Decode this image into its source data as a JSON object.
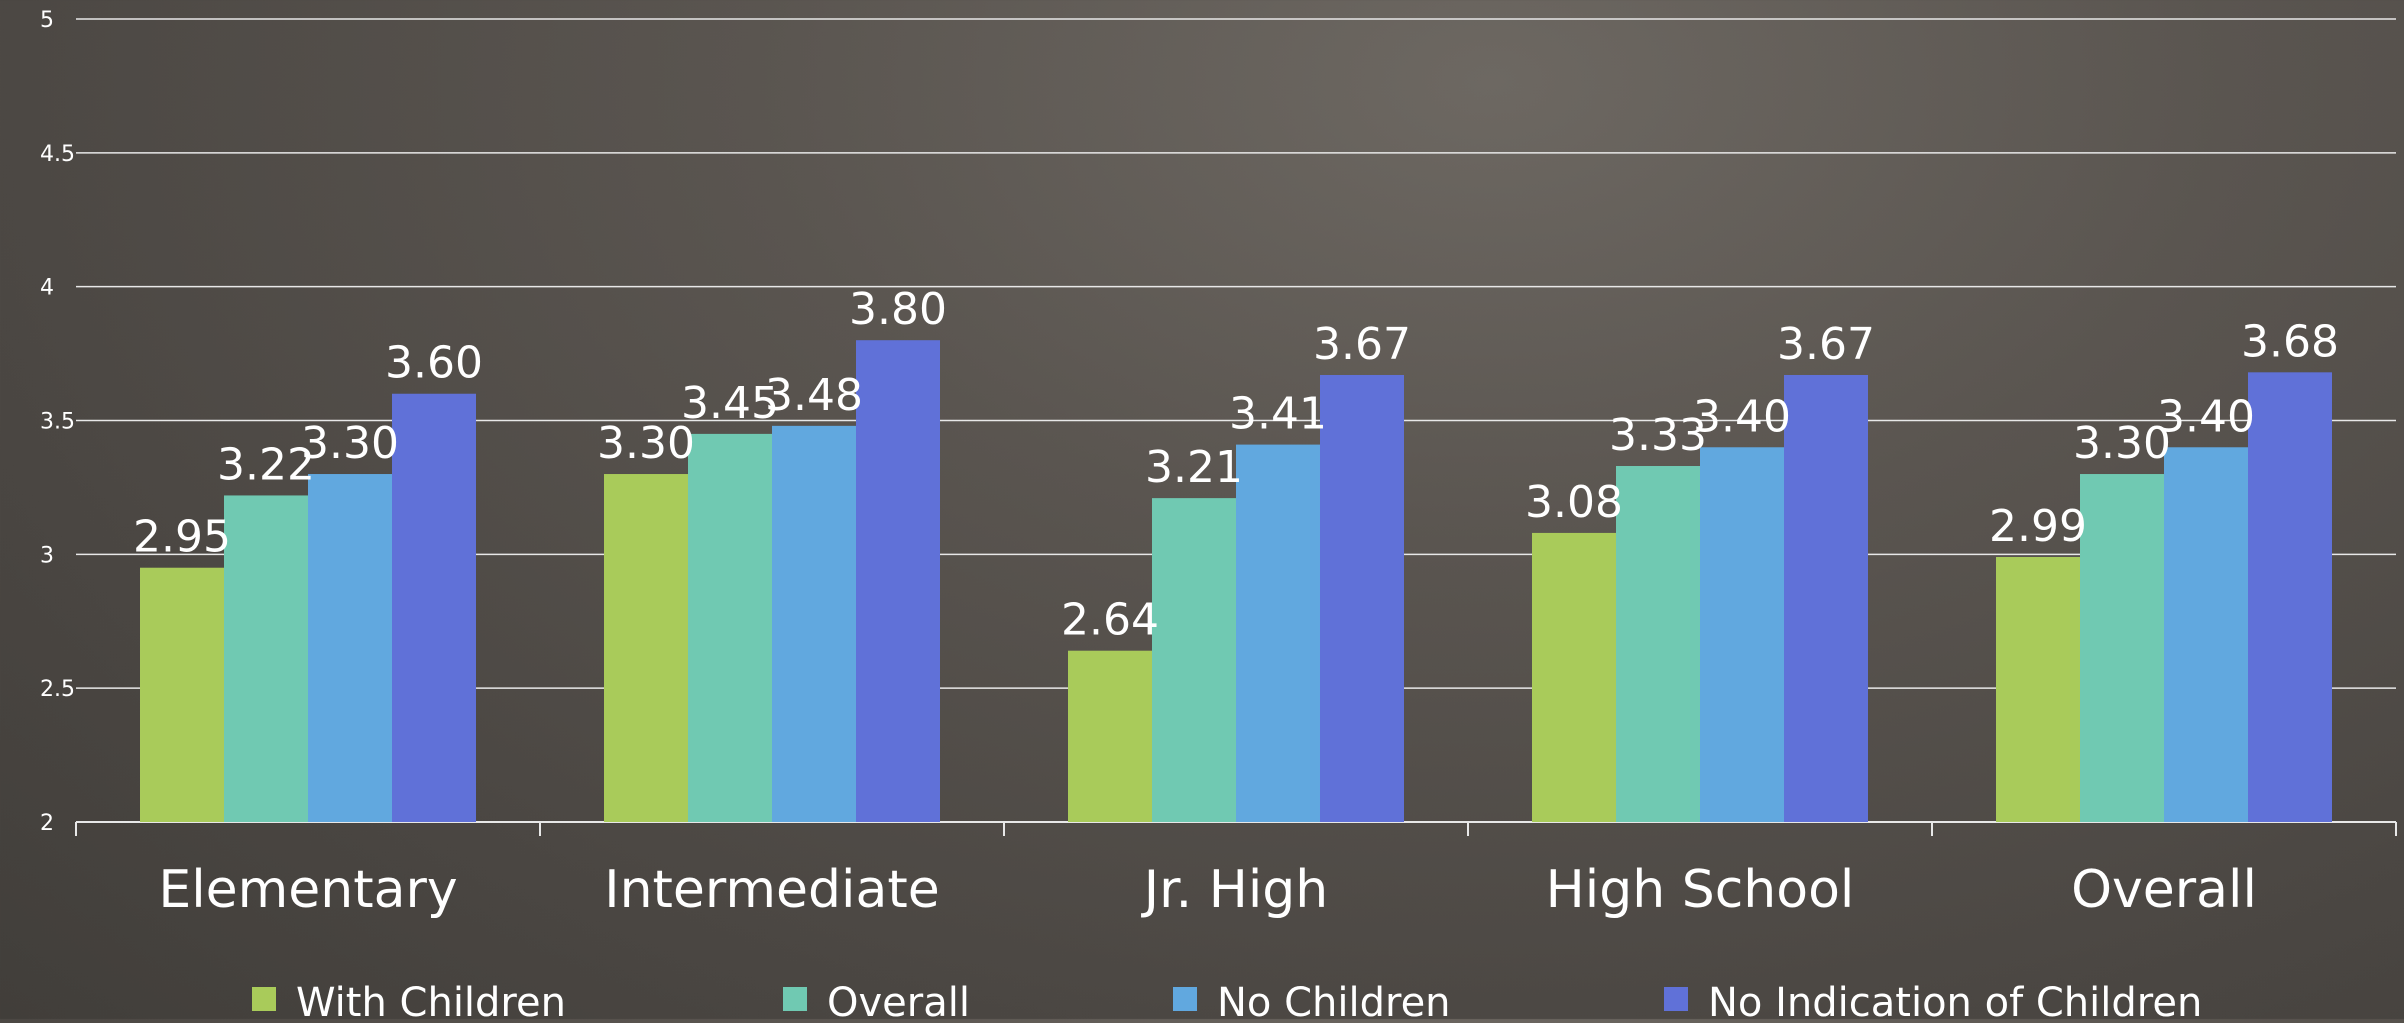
{
  "chart_data": {
    "type": "bar",
    "categories": [
      "Elementary",
      "Intermediate",
      "Jr. High",
      "High School",
      "Overall"
    ],
    "series": [
      {
        "name": "With Children",
        "color": "#a9cb5a",
        "values": [
          2.95,
          3.3,
          2.64,
          3.08,
          2.99
        ],
        "labels": [
          "2.95",
          "3.30",
          "2.64",
          "3.08",
          "2.99"
        ]
      },
      {
        "name": "Overall",
        "color": "#70c9b2",
        "values": [
          3.22,
          3.45,
          3.21,
          3.33,
          3.3
        ],
        "labels": [
          "3.22",
          "3.45",
          "3.21",
          "3.33",
          "3.30"
        ]
      },
      {
        "name": "No Children",
        "color": "#61a8df",
        "values": [
          3.3,
          3.48,
          3.41,
          3.4,
          3.4
        ],
        "labels": [
          "3.30",
          "3.48",
          "3.41",
          "3.40",
          "3.40"
        ]
      },
      {
        "name": "No Indication of Children",
        "color": "#6071d8",
        "values": [
          3.6,
          3.8,
          3.67,
          3.67,
          3.68
        ],
        "labels": [
          "3.60",
          "3.80",
          "3.67",
          "3.67",
          "3.68"
        ]
      }
    ],
    "yticks": [
      "2",
      "2.5",
      "3",
      "3.5",
      "4",
      "4.5",
      "5"
    ],
    "ylim": [
      2,
      5
    ],
    "title": "",
    "xlabel": "",
    "ylabel": "",
    "grid": true,
    "legend_position": "bottom"
  }
}
